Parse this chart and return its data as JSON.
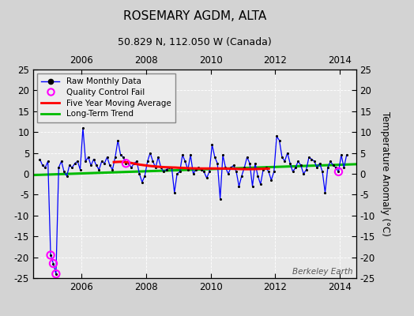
{
  "title": "ROSEMARY AGDM, ALTA",
  "subtitle": "50.829 N, 112.050 W (Canada)",
  "ylabel": "Temperature Anomaly (°C)",
  "watermark": "Berkeley Earth",
  "xlim": [
    2004.5,
    2014.5
  ],
  "ylim": [
    -25,
    25
  ],
  "yticks": [
    -25,
    -20,
    -15,
    -10,
    -5,
    0,
    5,
    10,
    15,
    20,
    25
  ],
  "xticks": [
    2006,
    2008,
    2010,
    2012,
    2014
  ],
  "bg_color": "#d3d3d3",
  "plot_bg_color": "#e8e8e8",
  "grid_color": "#ffffff",
  "raw_color": "#0000ff",
  "raw_marker_color": "#000000",
  "ma_color": "#ff0000",
  "trend_color": "#00bb00",
  "qc_fail_color": "#ff00ff",
  "raw_data": [
    [
      2004.708,
      3.5
    ],
    [
      2004.792,
      2.0
    ],
    [
      2004.875,
      1.5
    ],
    [
      2004.958,
      3.0
    ],
    [
      2005.042,
      -19.5
    ],
    [
      2005.125,
      -21.5
    ],
    [
      2005.208,
      -24.0
    ],
    [
      2005.292,
      1.5
    ],
    [
      2005.375,
      3.0
    ],
    [
      2005.458,
      0.5
    ],
    [
      2005.542,
      -0.5
    ],
    [
      2005.625,
      2.0
    ],
    [
      2005.708,
      1.5
    ],
    [
      2005.792,
      2.5
    ],
    [
      2005.875,
      3.0
    ],
    [
      2005.958,
      1.0
    ],
    [
      2006.042,
      11.0
    ],
    [
      2006.125,
      3.0
    ],
    [
      2006.208,
      4.0
    ],
    [
      2006.292,
      2.0
    ],
    [
      2006.375,
      3.5
    ],
    [
      2006.458,
      2.0
    ],
    [
      2006.542,
      1.0
    ],
    [
      2006.625,
      3.0
    ],
    [
      2006.708,
      2.5
    ],
    [
      2006.792,
      4.0
    ],
    [
      2006.875,
      2.0
    ],
    [
      2006.958,
      1.0
    ],
    [
      2007.042,
      4.0
    ],
    [
      2007.125,
      8.0
    ],
    [
      2007.208,
      4.5
    ],
    [
      2007.292,
      4.0
    ],
    [
      2007.375,
      2.5
    ],
    [
      2007.458,
      2.5
    ],
    [
      2007.542,
      1.5
    ],
    [
      2007.625,
      2.5
    ],
    [
      2007.708,
      3.0
    ],
    [
      2007.792,
      0.0
    ],
    [
      2007.875,
      -2.0
    ],
    [
      2007.958,
      -0.5
    ],
    [
      2008.042,
      3.0
    ],
    [
      2008.125,
      5.0
    ],
    [
      2008.208,
      3.0
    ],
    [
      2008.292,
      1.5
    ],
    [
      2008.375,
      4.0
    ],
    [
      2008.458,
      1.5
    ],
    [
      2008.542,
      0.5
    ],
    [
      2008.625,
      1.0
    ],
    [
      2008.708,
      1.5
    ],
    [
      2008.792,
      1.5
    ],
    [
      2008.875,
      -4.5
    ],
    [
      2008.958,
      0.0
    ],
    [
      2009.042,
      0.5
    ],
    [
      2009.125,
      4.5
    ],
    [
      2009.208,
      3.0
    ],
    [
      2009.292,
      1.0
    ],
    [
      2009.375,
      4.5
    ],
    [
      2009.458,
      0.0
    ],
    [
      2009.542,
      1.0
    ],
    [
      2009.625,
      1.5
    ],
    [
      2009.708,
      1.0
    ],
    [
      2009.792,
      0.5
    ],
    [
      2009.875,
      -1.0
    ],
    [
      2009.958,
      0.5
    ],
    [
      2010.042,
      7.0
    ],
    [
      2010.125,
      4.0
    ],
    [
      2010.208,
      2.5
    ],
    [
      2010.292,
      -6.0
    ],
    [
      2010.375,
      4.5
    ],
    [
      2010.458,
      1.5
    ],
    [
      2010.542,
      0.0
    ],
    [
      2010.625,
      1.5
    ],
    [
      2010.708,
      2.0
    ],
    [
      2010.792,
      0.5
    ],
    [
      2010.875,
      -3.0
    ],
    [
      2010.958,
      -0.5
    ],
    [
      2011.042,
      1.5
    ],
    [
      2011.125,
      4.0
    ],
    [
      2011.208,
      2.5
    ],
    [
      2011.292,
      -3.0
    ],
    [
      2011.375,
      2.5
    ],
    [
      2011.458,
      -0.5
    ],
    [
      2011.542,
      -2.5
    ],
    [
      2011.625,
      1.0
    ],
    [
      2011.708,
      1.5
    ],
    [
      2011.792,
      0.5
    ],
    [
      2011.875,
      -1.5
    ],
    [
      2011.958,
      0.5
    ],
    [
      2012.042,
      9.0
    ],
    [
      2012.125,
      8.0
    ],
    [
      2012.208,
      4.0
    ],
    [
      2012.292,
      3.0
    ],
    [
      2012.375,
      5.0
    ],
    [
      2012.458,
      2.5
    ],
    [
      2012.542,
      0.5
    ],
    [
      2012.625,
      1.5
    ],
    [
      2012.708,
      3.0
    ],
    [
      2012.792,
      2.0
    ],
    [
      2012.875,
      0.0
    ],
    [
      2012.958,
      1.0
    ],
    [
      2013.042,
      4.0
    ],
    [
      2013.125,
      3.5
    ],
    [
      2013.208,
      3.0
    ],
    [
      2013.292,
      1.5
    ],
    [
      2013.375,
      2.5
    ],
    [
      2013.458,
      0.5
    ],
    [
      2013.542,
      -4.5
    ],
    [
      2013.625,
      1.5
    ],
    [
      2013.708,
      3.0
    ],
    [
      2013.792,
      2.0
    ],
    [
      2013.875,
      1.5
    ],
    [
      2013.958,
      0.5
    ],
    [
      2014.042,
      4.5
    ],
    [
      2014.125,
      1.5
    ],
    [
      2014.208,
      4.5
    ]
  ],
  "qc_fail_points": [
    [
      2005.042,
      -19.5
    ],
    [
      2005.125,
      -21.5
    ],
    [
      2005.208,
      -24.0
    ],
    [
      2007.375,
      2.5
    ],
    [
      2013.958,
      0.5
    ]
  ],
  "ma_data": [
    [
      2007.0,
      2.8
    ],
    [
      2007.1,
      2.85
    ],
    [
      2007.2,
      2.88
    ],
    [
      2007.3,
      2.85
    ],
    [
      2007.4,
      2.78
    ],
    [
      2007.5,
      2.65
    ],
    [
      2007.6,
      2.5
    ],
    [
      2007.7,
      2.35
    ],
    [
      2007.8,
      2.2
    ],
    [
      2007.9,
      2.1
    ],
    [
      2008.0,
      2.0
    ],
    [
      2008.1,
      1.9
    ],
    [
      2008.2,
      1.82
    ],
    [
      2008.3,
      1.75
    ],
    [
      2008.4,
      1.68
    ],
    [
      2008.5,
      1.62
    ],
    [
      2008.6,
      1.58
    ],
    [
      2008.7,
      1.55
    ],
    [
      2008.8,
      1.52
    ],
    [
      2008.9,
      1.5
    ],
    [
      2009.0,
      1.45
    ],
    [
      2009.1,
      1.42
    ],
    [
      2009.2,
      1.38
    ],
    [
      2009.3,
      1.35
    ],
    [
      2009.4,
      1.32
    ],
    [
      2009.5,
      1.3
    ],
    [
      2009.6,
      1.28
    ],
    [
      2009.7,
      1.27
    ],
    [
      2009.8,
      1.27
    ],
    [
      2009.9,
      1.27
    ],
    [
      2010.0,
      1.28
    ],
    [
      2010.1,
      1.28
    ],
    [
      2010.2,
      1.28
    ],
    [
      2010.3,
      1.27
    ],
    [
      2010.4,
      1.26
    ],
    [
      2010.5,
      1.25
    ],
    [
      2010.6,
      1.22
    ],
    [
      2010.7,
      1.2
    ],
    [
      2010.8,
      1.18
    ],
    [
      2010.9,
      1.15
    ],
    [
      2011.0,
      1.13
    ],
    [
      2011.1,
      1.12
    ],
    [
      2011.2,
      1.12
    ],
    [
      2011.3,
      1.13
    ],
    [
      2011.4,
      1.15
    ],
    [
      2011.5,
      1.17
    ],
    [
      2011.6,
      1.2
    ],
    [
      2011.7,
      1.22
    ],
    [
      2011.8,
      1.25
    ]
  ],
  "trend_x": [
    2004.5,
    2014.5
  ],
  "trend_y": [
    -0.3,
    2.3
  ]
}
